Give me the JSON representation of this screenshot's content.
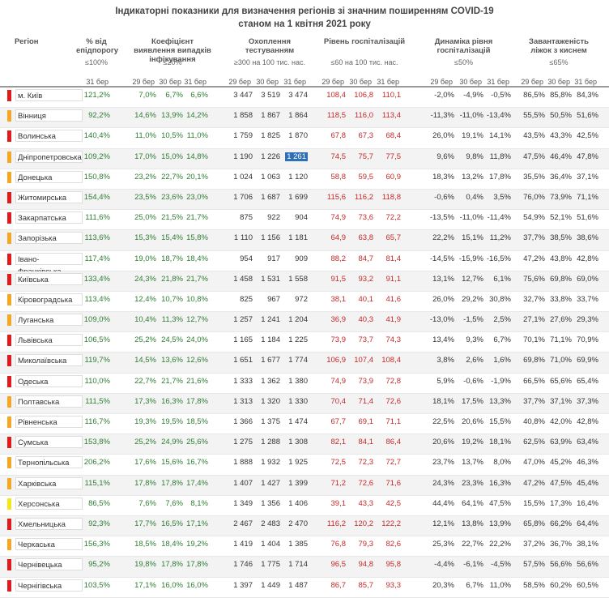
{
  "title": {
    "line1": "Індикаторні показники для визначення регіонів зі значним поширенням COVID-19",
    "line2": "станом на 1 квітня 2021 року"
  },
  "headers": {
    "region": "Регіон",
    "pct": "% від епідпорогу",
    "pct_sub": "≤100%",
    "koef": "Коефіцієнт виявлення випадків інфікування",
    "koef_sub": "≤20%",
    "test": "Охоплення тестуванням",
    "test_sub": "≥300 на 100 тис. нас.",
    "hosp": "Рівень госпіталізацій",
    "hosp_sub": "≤60 на 100 тис. нас.",
    "dyn": "Динаміка рівня госпіталізацій",
    "dyn_sub": "≤50%",
    "beds": "Завантаженість ліжок з киснем",
    "beds_sub": "≤65%",
    "date_pct": "31 бер",
    "dates": [
      "29 бер",
      "30 бер",
      "31 бер"
    ]
  },
  "colors": {
    "red": "#e31a1c",
    "orange": "#f5a623",
    "yellow": "#f5e61a"
  },
  "rows": [
    {
      "region": "м. Київ",
      "level": "red",
      "pct": "121,2%",
      "koef": [
        "7,0%",
        "6,7%",
        "6,6%"
      ],
      "test": [
        "3 447",
        "3 519",
        "3 474"
      ],
      "hosp": [
        "108,4",
        "106,8",
        "110,1"
      ],
      "dyn": [
        "-2,0%",
        "-4,9%",
        "-0,5%"
      ],
      "beds": [
        "86,5%",
        "85,8%",
        "84,3%"
      ]
    },
    {
      "region": "Вінниця",
      "level": "orange",
      "pct": "92,2%",
      "koef": [
        "14,6%",
        "13,9%",
        "14,2%"
      ],
      "test": [
        "1 858",
        "1 867",
        "1 864"
      ],
      "hosp": [
        "118,5",
        "116,0",
        "113,4"
      ],
      "dyn": [
        "-11,3%",
        "-11,0%",
        "-13,4%"
      ],
      "beds": [
        "55,5%",
        "50,5%",
        "51,6%"
      ]
    },
    {
      "region": "Волинська",
      "level": "red",
      "pct": "140,4%",
      "koef": [
        "11,0%",
        "10,5%",
        "11,0%"
      ],
      "test": [
        "1 759",
        "1 825",
        "1 870"
      ],
      "hosp": [
        "67,8",
        "67,3",
        "68,4"
      ],
      "dyn": [
        "26,0%",
        "19,1%",
        "14,1%"
      ],
      "beds": [
        "43,5%",
        "43,3%",
        "42,5%"
      ]
    },
    {
      "region": "Дніпропетровська",
      "level": "orange",
      "pct": "109,2%",
      "koef": [
        "17,0%",
        "15,0%",
        "14,8%"
      ],
      "test": [
        "1 190",
        "1 226",
        "1 261"
      ],
      "hosp": [
        "74,5",
        "75,7",
        "77,5"
      ],
      "dyn": [
        "9,6%",
        "9,8%",
        "11,8%"
      ],
      "beds": [
        "47,5%",
        "46,4%",
        "47,8%"
      ]
    },
    {
      "region": "Донецька",
      "level": "orange",
      "pct": "150,8%",
      "koef": [
        "23,2%",
        "22,7%",
        "20,1%"
      ],
      "test": [
        "1 024",
        "1 063",
        "1 120"
      ],
      "hosp": [
        "58,8",
        "59,5",
        "60,9"
      ],
      "dyn": [
        "18,3%",
        "13,2%",
        "17,8%"
      ],
      "beds": [
        "35,5%",
        "36,4%",
        "37,1%"
      ]
    },
    {
      "region": "Житомирська",
      "level": "red",
      "pct": "154,4%",
      "koef": [
        "23,5%",
        "23,6%",
        "23,0%"
      ],
      "test": [
        "1 706",
        "1 687",
        "1 699"
      ],
      "hosp": [
        "115,6",
        "116,2",
        "118,8"
      ],
      "dyn": [
        "-0,6%",
        "0,4%",
        "3,5%"
      ],
      "beds": [
        "76,0%",
        "73,9%",
        "71,1%"
      ]
    },
    {
      "region": "Закарпатська",
      "level": "red",
      "pct": "111,6%",
      "koef": [
        "25,0%",
        "21,5%",
        "21,7%"
      ],
      "test": [
        "875",
        "922",
        "904"
      ],
      "hosp": [
        "74,9",
        "73,6",
        "72,2"
      ],
      "dyn": [
        "-13,5%",
        "-11,0%",
        "-11,4%"
      ],
      "beds": [
        "54,9%",
        "52,1%",
        "51,6%"
      ]
    },
    {
      "region": "Запорізька",
      "level": "orange",
      "pct": "113,6%",
      "koef": [
        "15,3%",
        "15,4%",
        "15,8%"
      ],
      "test": [
        "1 110",
        "1 156",
        "1 181"
      ],
      "hosp": [
        "64,9",
        "63,8",
        "65,7"
      ],
      "dyn": [
        "22,2%",
        "15,1%",
        "11,2%"
      ],
      "beds": [
        "37,7%",
        "38,5%",
        "38,6%"
      ]
    },
    {
      "region": "Івано-Франківська",
      "level": "red",
      "pct": "117,4%",
      "koef": [
        "19,0%",
        "18,7%",
        "18,4%"
      ],
      "test": [
        "954",
        "917",
        "909"
      ],
      "hosp": [
        "88,2",
        "84,7",
        "81,4"
      ],
      "dyn": [
        "-14,5%",
        "-15,9%",
        "-16,5%"
      ],
      "beds": [
        "47,2%",
        "43,8%",
        "42,8%"
      ]
    },
    {
      "region": "Київська",
      "level": "red",
      "pct": "133,4%",
      "koef": [
        "24,3%",
        "21,8%",
        "21,7%"
      ],
      "test": [
        "1 458",
        "1 531",
        "1 558"
      ],
      "hosp": [
        "91,5",
        "93,2",
        "91,1"
      ],
      "dyn": [
        "13,1%",
        "12,7%",
        "6,1%"
      ],
      "beds": [
        "75,6%",
        "69,8%",
        "69,0%"
      ]
    },
    {
      "region": "Кіровоградська",
      "level": "orange",
      "pct": "113,4%",
      "koef": [
        "12,4%",
        "10,7%",
        "10,8%"
      ],
      "test": [
        "825",
        "967",
        "972"
      ],
      "hosp": [
        "38,1",
        "40,1",
        "41,6"
      ],
      "dyn": [
        "26,0%",
        "29,2%",
        "30,8%"
      ],
      "beds": [
        "32,7%",
        "33,8%",
        "33,7%"
      ]
    },
    {
      "region": "Луганська",
      "level": "orange",
      "pct": "109,0%",
      "koef": [
        "10,4%",
        "11,3%",
        "12,7%"
      ],
      "test": [
        "1 257",
        "1 241",
        "1 204"
      ],
      "hosp": [
        "36,9",
        "40,3",
        "41,9"
      ],
      "dyn": [
        "-13,0%",
        "-1,5%",
        "2,5%"
      ],
      "beds": [
        "27,1%",
        "27,6%",
        "29,3%"
      ]
    },
    {
      "region": "Львівська",
      "level": "red",
      "pct": "106,5%",
      "koef": [
        "25,2%",
        "24,5%",
        "24,0%"
      ],
      "test": [
        "1 165",
        "1 184",
        "1 225"
      ],
      "hosp": [
        "73,9",
        "73,7",
        "74,3"
      ],
      "dyn": [
        "13,4%",
        "9,3%",
        "6,7%"
      ],
      "beds": [
        "70,1%",
        "71,1%",
        "70,9%"
      ]
    },
    {
      "region": "Миколаївська",
      "level": "red",
      "pct": "119,7%",
      "koef": [
        "14,5%",
        "13,6%",
        "12,6%"
      ],
      "test": [
        "1 651",
        "1 677",
        "1 774"
      ],
      "hosp": [
        "106,9",
        "107,4",
        "108,4"
      ],
      "dyn": [
        "3,8%",
        "2,6%",
        "1,6%"
      ],
      "beds": [
        "69,8%",
        "71,0%",
        "69,9%"
      ]
    },
    {
      "region": "Одеська",
      "level": "red",
      "pct": "110,0%",
      "koef": [
        "22,7%",
        "21,7%",
        "21,6%"
      ],
      "test": [
        "1 333",
        "1 362",
        "1 380"
      ],
      "hosp": [
        "74,9",
        "73,9",
        "72,8"
      ],
      "dyn": [
        "5,9%",
        "-0,6%",
        "-1,9%"
      ],
      "beds": [
        "66,5%",
        "65,6%",
        "65,4%"
      ]
    },
    {
      "region": "Полтавська",
      "level": "orange",
      "pct": "111,5%",
      "koef": [
        "17,3%",
        "16,3%",
        "17,8%"
      ],
      "test": [
        "1 313",
        "1 320",
        "1 330"
      ],
      "hosp": [
        "70,4",
        "71,4",
        "72,6"
      ],
      "dyn": [
        "18,1%",
        "17,5%",
        "13,3%"
      ],
      "beds": [
        "37,7%",
        "37,1%",
        "37,3%"
      ]
    },
    {
      "region": "Рівненська",
      "level": "orange",
      "pct": "116,7%",
      "koef": [
        "19,3%",
        "19,5%",
        "18,5%"
      ],
      "test": [
        "1 366",
        "1 375",
        "1 474"
      ],
      "hosp": [
        "67,7",
        "69,1",
        "71,1"
      ],
      "dyn": [
        "22,5%",
        "20,6%",
        "15,5%"
      ],
      "beds": [
        "40,8%",
        "42,0%",
        "42,8%"
      ]
    },
    {
      "region": "Сумська",
      "level": "red",
      "pct": "153,8%",
      "koef": [
        "25,2%",
        "24,9%",
        "25,6%"
      ],
      "test": [
        "1 275",
        "1 288",
        "1 308"
      ],
      "hosp": [
        "82,1",
        "84,1",
        "86,4"
      ],
      "dyn": [
        "20,6%",
        "19,2%",
        "18,1%"
      ],
      "beds": [
        "62,5%",
        "63,9%",
        "63,4%"
      ]
    },
    {
      "region": "Тернопільська",
      "level": "orange",
      "pct": "206,2%",
      "koef": [
        "17,6%",
        "15,6%",
        "16,7%"
      ],
      "test": [
        "1 888",
        "1 932",
        "1 925"
      ],
      "hosp": [
        "72,5",
        "72,3",
        "72,7"
      ],
      "dyn": [
        "23,7%",
        "13,7%",
        "8,0%"
      ],
      "beds": [
        "47,0%",
        "45,2%",
        "46,3%"
      ]
    },
    {
      "region": "Харківська",
      "level": "orange",
      "pct": "115,1%",
      "koef": [
        "17,8%",
        "17,8%",
        "17,4%"
      ],
      "test": [
        "1 407",
        "1 427",
        "1 399"
      ],
      "hosp": [
        "71,2",
        "72,6",
        "71,6"
      ],
      "dyn": [
        "24,3%",
        "23,3%",
        "16,3%"
      ],
      "beds": [
        "47,2%",
        "47,5%",
        "45,4%"
      ]
    },
    {
      "region": "Херсонська",
      "level": "yellow",
      "pct": "86,5%",
      "koef": [
        "7,6%",
        "7,6%",
        "8,1%"
      ],
      "test": [
        "1 349",
        "1 356",
        "1 406"
      ],
      "hosp": [
        "39,1",
        "43,3",
        "42,5"
      ],
      "dyn": [
        "44,4%",
        "64,1%",
        "47,5%"
      ],
      "beds": [
        "15,5%",
        "17,3%",
        "16,4%"
      ]
    },
    {
      "region": "Хмельницька",
      "level": "red",
      "pct": "92,3%",
      "koef": [
        "17,7%",
        "16,5%",
        "17,1%"
      ],
      "test": [
        "2 467",
        "2 483",
        "2 470"
      ],
      "hosp": [
        "116,2",
        "120,2",
        "122,2"
      ],
      "dyn": [
        "12,1%",
        "13,8%",
        "13,9%"
      ],
      "beds": [
        "65,8%",
        "66,2%",
        "64,4%"
      ]
    },
    {
      "region": "Черкаська",
      "level": "orange",
      "pct": "156,3%",
      "koef": [
        "18,5%",
        "18,4%",
        "19,2%"
      ],
      "test": [
        "1 419",
        "1 404",
        "1 385"
      ],
      "hosp": [
        "76,8",
        "79,3",
        "82,6"
      ],
      "dyn": [
        "25,3%",
        "22,7%",
        "22,2%"
      ],
      "beds": [
        "37,2%",
        "36,7%",
        "38,1%"
      ]
    },
    {
      "region": "Чернівецька",
      "level": "red",
      "pct": "95,2%",
      "koef": [
        "19,8%",
        "17,8%",
        "17,8%"
      ],
      "test": [
        "1 746",
        "1 775",
        "1 714"
      ],
      "hosp": [
        "96,5",
        "94,8",
        "95,8"
      ],
      "dyn": [
        "-4,4%",
        "-6,1%",
        "-4,5%"
      ],
      "beds": [
        "57,5%",
        "56,6%",
        "56,6%"
      ]
    },
    {
      "region": "Чернігівська",
      "level": "red",
      "pct": "103,5%",
      "koef": [
        "17,1%",
        "16,0%",
        "16,0%"
      ],
      "test": [
        "1 397",
        "1 449",
        "1 487"
      ],
      "hosp": [
        "86,7",
        "85,7",
        "93,3"
      ],
      "dyn": [
        "20,3%",
        "6,7%",
        "11,0%"
      ],
      "beds": [
        "58,5%",
        "60,2%",
        "60,5%"
      ]
    }
  ]
}
